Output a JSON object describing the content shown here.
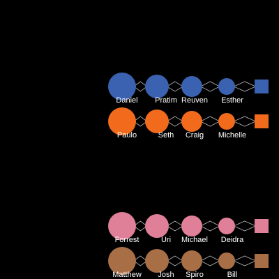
{
  "colors": {
    "background": "#000000",
    "connector": "#b8b8b8",
    "label": "#ffffff"
  },
  "groups": [
    {
      "color": "#3a62b0",
      "people": [
        "Daniel",
        "Pratim",
        "Reuven",
        "Esther"
      ]
    },
    {
      "color": "#f26b1d",
      "people": [
        "Paulo",
        "Seth",
        "Craig",
        "Michelle"
      ]
    },
    {
      "color": "#e07f98",
      "people": [
        "Forrest",
        "Uri",
        "Michael",
        "Deidra"
      ]
    },
    {
      "color": "#a86f47",
      "people": [
        "Matthew",
        "Josh",
        "Spiro",
        "Bill"
      ]
    }
  ]
}
